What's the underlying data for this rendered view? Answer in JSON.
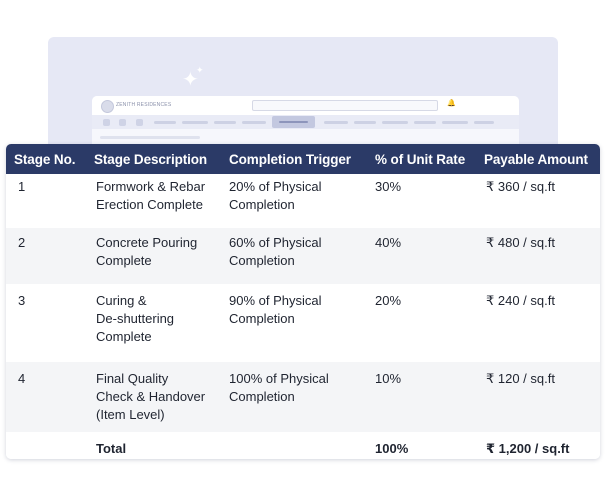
{
  "background": {
    "brand_name": "ZENITH RESIDENCES"
  },
  "table": {
    "columns": [
      "Stage No.",
      "Stage Description",
      "Completion Trigger",
      "% of Unit Rate",
      "Payable Amount"
    ],
    "rows": [
      {
        "stage": "1",
        "description": [
          "Formwork & Rebar",
          "Erection Complete"
        ],
        "trigger": [
          "20% of Physical",
          "Completion"
        ],
        "percent": "30%",
        "amount": "₹ 360 / sq.ft"
      },
      {
        "stage": "2",
        "description": [
          "Concrete Pouring",
          "Complete"
        ],
        "trigger": [
          "60% of Physical",
          "Completion"
        ],
        "percent": "40%",
        "amount": "₹ 480 / sq.ft"
      },
      {
        "stage": "3",
        "description": [
          "Curing &",
          "De-shuttering",
          "Complete"
        ],
        "trigger": [
          "90% of Physical",
          "Completion"
        ],
        "percent": "20%",
        "amount": "₹ 240 / sq.ft"
      },
      {
        "stage": "4",
        "description": [
          "Final Quality",
          "Check & Handover",
          "(Item Level)"
        ],
        "trigger": [
          "100% of Physical",
          "Completion"
        ],
        "percent": "10%",
        "amount": "₹ 120 / sq.ft"
      }
    ],
    "total": {
      "label": "Total",
      "percent": "100%",
      "amount": "₹ 1,200 / sq.ft"
    }
  },
  "colors": {
    "header_bg": "#2b3a67",
    "alt_row_bg": "#f4f5f7",
    "background_card": "#e6e8f5"
  },
  "icons": [
    "sparkle-icon",
    "building-logo-icon",
    "bell-icon"
  ]
}
